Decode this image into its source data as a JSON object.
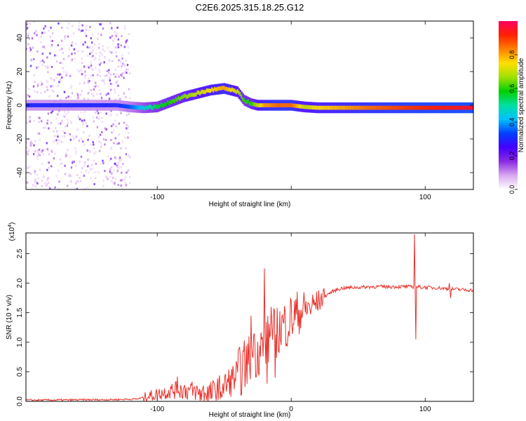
{
  "title": "C2E6.2025.315.18.25.G12",
  "chart_data": [
    {
      "type": "heatmap",
      "name": "spectrogram",
      "xlabel": "Height of straight line (km)",
      "ylabel": "Frequency (Hz)",
      "xlim": [
        -198,
        136
      ],
      "ylim": [
        -50,
        50
      ],
      "xticks": [
        -100,
        0,
        100
      ],
      "xtick_labels": [
        "-100",
        "",
        "100"
      ],
      "yticks": [
        -40,
        -20,
        0,
        20,
        40
      ],
      "ytick_labels": [
        "-40",
        "-20",
        "0",
        "20",
        "40"
      ],
      "noise_region_x": [
        -198,
        -120
      ],
      "ridge": {
        "x": [
          -198,
          -130,
          -120,
          -110,
          -100,
          -90,
          -80,
          -70,
          -60,
          -50,
          -40,
          -35,
          -30,
          -25,
          -20,
          -10,
          0,
          10,
          20,
          40,
          60,
          90,
          136
        ],
        "freq": [
          0,
          0,
          -1,
          -1.5,
          -1,
          2,
          5,
          7,
          9,
          10,
          8,
          3,
          1,
          0,
          0,
          0,
          0,
          -1,
          -1.5,
          -1.5,
          -1.5,
          -1.5,
          -1.5
        ],
        "amplitude": [
          0.3,
          0.3,
          0.35,
          0.45,
          0.55,
          0.6,
          0.65,
          0.7,
          0.75,
          0.8,
          0.7,
          0.6,
          0.6,
          0.7,
          0.8,
          0.85,
          0.85,
          0.7,
          0.75,
          0.8,
          0.85,
          0.9,
          0.95
        ]
      },
      "colorbar": {
        "label": "Normalized spectral amplitude",
        "range": [
          0,
          1
        ],
        "ticks": [
          0.0,
          0.2,
          0.4,
          0.6,
          0.8
        ],
        "tick_labels": [
          "0.0",
          "0.2",
          "0.4",
          "0.6",
          "0.8"
        ],
        "colormap": [
          "#ffffff",
          "#d9a8f0",
          "#8a2be2",
          "#4400ff",
          "#0040ff",
          "#00c0ff",
          "#00e0a0",
          "#00d000",
          "#a0e000",
          "#ffe000",
          "#ff8000",
          "#ff2000",
          "#ff0060"
        ]
      }
    },
    {
      "type": "line",
      "name": "snr",
      "xlabel": "Height of straight line (km)",
      "ylabel": "SNR (10 * v/v)",
      "y_multiplier": "(x10",
      "y_multiplier_exp": "4",
      "y_multiplier_close": ")",
      "xlim": [
        -198,
        136
      ],
      "ylim": [
        0,
        2.85
      ],
      "xticks": [
        -100,
        0,
        100
      ],
      "xtick_labels": [
        "-100",
        "0",
        "100"
      ],
      "yticks": [
        0.0,
        0.5,
        1.0,
        1.5,
        2.0,
        2.5
      ],
      "ytick_labels": [
        "0.0",
        "0.5",
        "1.0",
        "1.5",
        "2.0",
        "2.5"
      ],
      "color": "#e8302a",
      "trend": {
        "x": [
          -198,
          -130,
          -115,
          -100,
          -90,
          -80,
          -70,
          -60,
          -55,
          -50,
          -45,
          -40,
          -35,
          -30,
          -25,
          -20,
          -15,
          -10,
          -5,
          0,
          5,
          10,
          15,
          20,
          25,
          30,
          35,
          40,
          50,
          60,
          70,
          80,
          90,
          100,
          110,
          120,
          136
        ],
        "y": [
          0.02,
          0.03,
          0.04,
          0.12,
          0.18,
          0.2,
          0.15,
          0.12,
          0.18,
          0.25,
          0.35,
          0.45,
          0.6,
          0.75,
          0.85,
          0.95,
          1.1,
          1.2,
          1.3,
          1.4,
          1.5,
          1.55,
          1.6,
          1.68,
          1.78,
          1.85,
          1.9,
          1.92,
          1.93,
          1.94,
          1.94,
          1.94,
          1.94,
          1.93,
          1.92,
          1.9,
          1.88
        ]
      },
      "spikes": [
        {
          "x": -85,
          "y": 0.42
        },
        {
          "x": -30,
          "y": 1.45
        },
        {
          "x": -28,
          "y": 1.12
        },
        {
          "x": -20,
          "y": 2.25
        },
        {
          "x": -18,
          "y": 0.3
        },
        {
          "x": -15,
          "y": 1.6
        },
        {
          "x": -12,
          "y": 0.4
        },
        {
          "x": 92,
          "y": 2.83
        },
        {
          "x": 93,
          "y": 1.05
        },
        {
          "x": 118,
          "y": 2.0
        },
        {
          "x": 119,
          "y": 1.75
        }
      ]
    }
  ]
}
